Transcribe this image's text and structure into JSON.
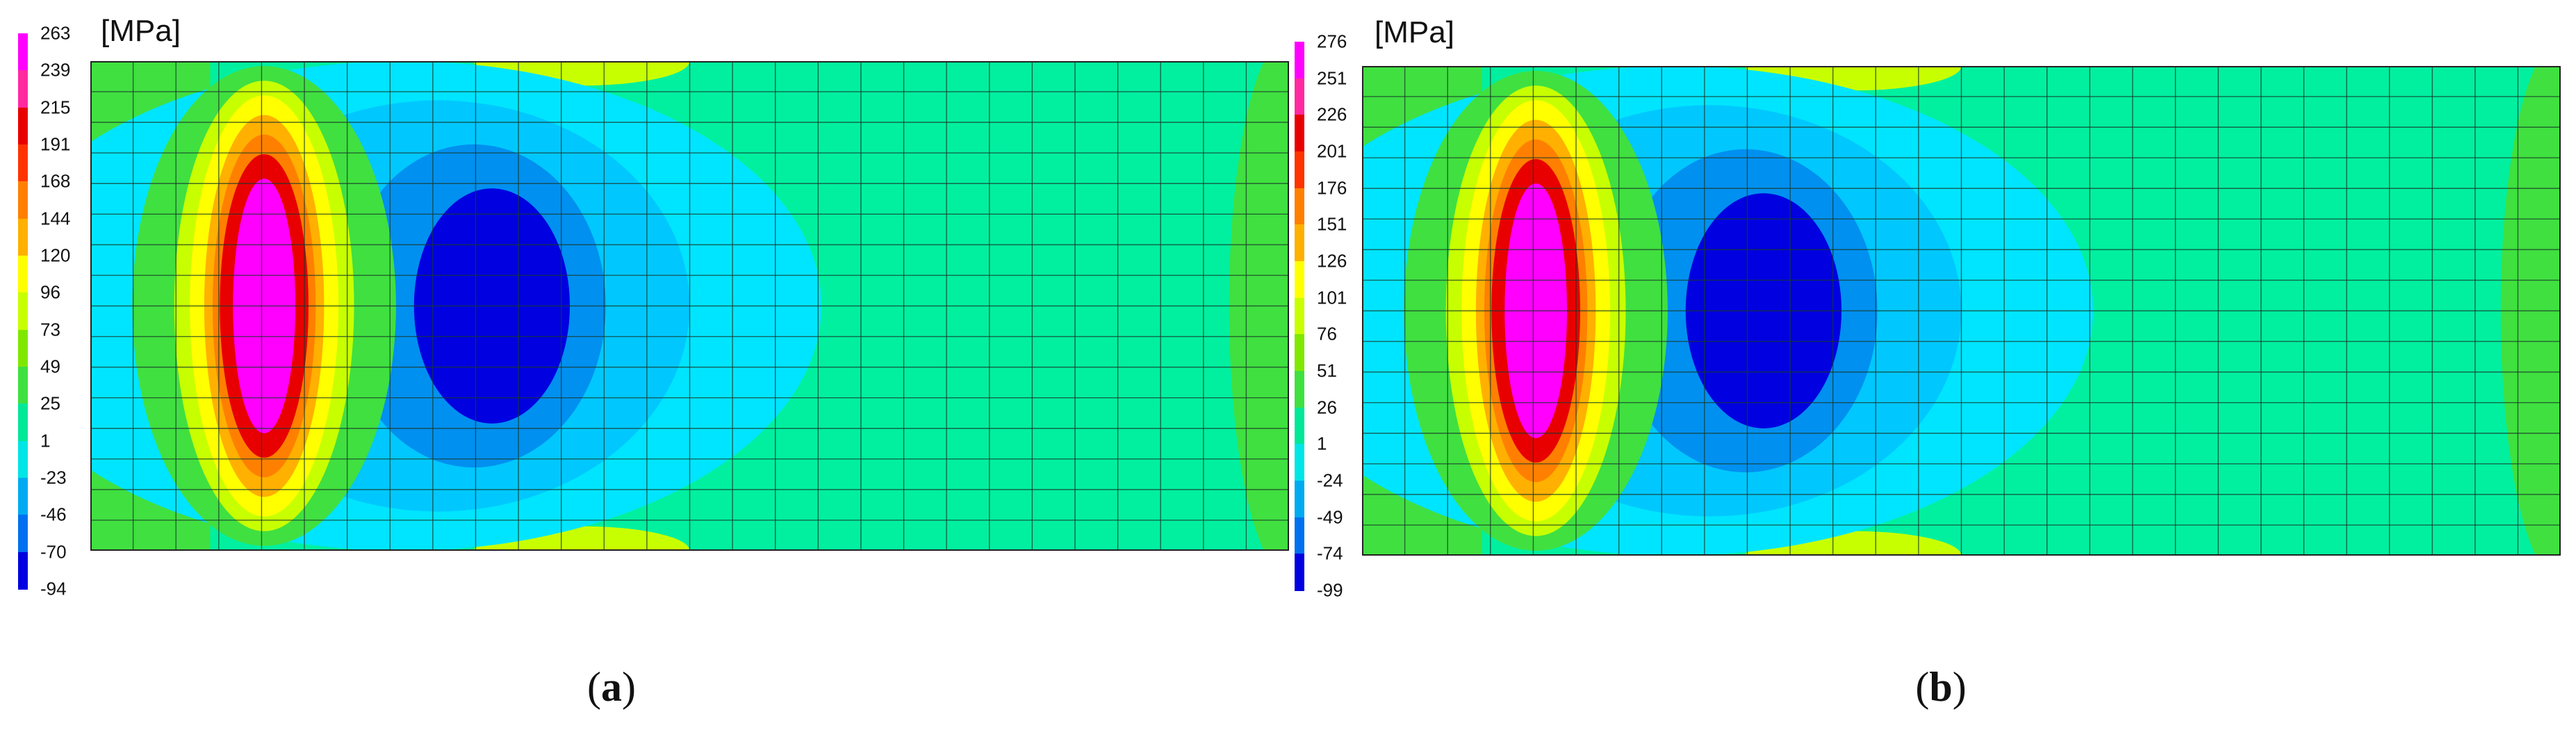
{
  "panels": [
    {
      "id": "a",
      "unit": "[MPa]",
      "caption_open": "(",
      "caption_letter": "a",
      "caption_close": ")",
      "legend_ticks": [
        "263",
        "239",
        "215",
        "191",
        "168",
        "144",
        "120",
        "96",
        "73",
        "49",
        "25",
        "1",
        "-23",
        "-46",
        "-70",
        "-94"
      ],
      "legend_colors": [
        "#ff00ff",
        "#ff2aa0",
        "#e80000",
        "#ff3300",
        "#ff8000",
        "#ffb000",
        "#ffff00",
        "#c8ff00",
        "#80e800",
        "#40e040",
        "#00e898",
        "#00e5e5",
        "#00aaf0",
        "#0070f0",
        "#0000e0"
      ]
    },
    {
      "id": "b",
      "unit": "[MPa]",
      "caption_open": "(",
      "caption_letter": "b",
      "caption_close": ")",
      "legend_ticks": [
        "276",
        "251",
        "226",
        "201",
        "176",
        "151",
        "126",
        "101",
        "76",
        "51",
        "26",
        "1",
        "-24",
        "-49",
        "-74",
        "-99"
      ],
      "legend_colors": [
        "#ff00ff",
        "#ff2aa0",
        "#e80000",
        "#ff3300",
        "#ff8000",
        "#ffb000",
        "#ffff00",
        "#c8ff00",
        "#80e800",
        "#40e040",
        "#00e898",
        "#00e5e5",
        "#00aaf0",
        "#0070f0",
        "#0000e0"
      ]
    }
  ],
  "contour_colors": {
    "background": "#00f0a0",
    "green": "#40e040",
    "yellowgreen": "#c8ff00",
    "yellow": "#ffff00",
    "orange": "#ffb000",
    "darkorange": "#ff8000",
    "red": "#e80000",
    "magenta": "#ff00ff",
    "lightcyan": "#00e5ff",
    "cyan": "#00c8ff",
    "skyblue": "#0090f0",
    "blue": "#0000e0"
  }
}
